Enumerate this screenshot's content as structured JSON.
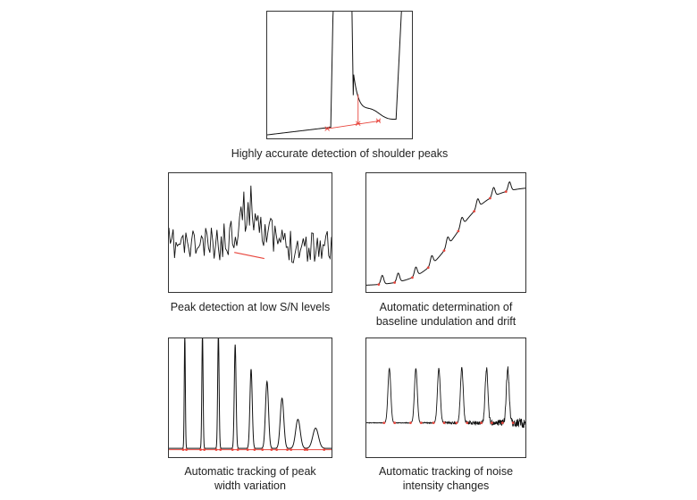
{
  "colors": {
    "trace": "#111111",
    "marker": "#e8453c",
    "frame": "#333333"
  },
  "panels": {
    "shoulder": {
      "caption": "Highly accurate detection of shoulder peaks"
    },
    "low_sn": {
      "caption": "Peak detection at low S/N levels"
    },
    "baseline": {
      "caption_lines": [
        "Automatic determination of",
        "baseline undulation and drift"
      ]
    },
    "width": {
      "caption_lines": [
        "Automatic tracking of peak",
        "width variation"
      ]
    },
    "noise": {
      "caption_lines": [
        "Automatic tracking of noise",
        "intensity changes"
      ]
    }
  }
}
